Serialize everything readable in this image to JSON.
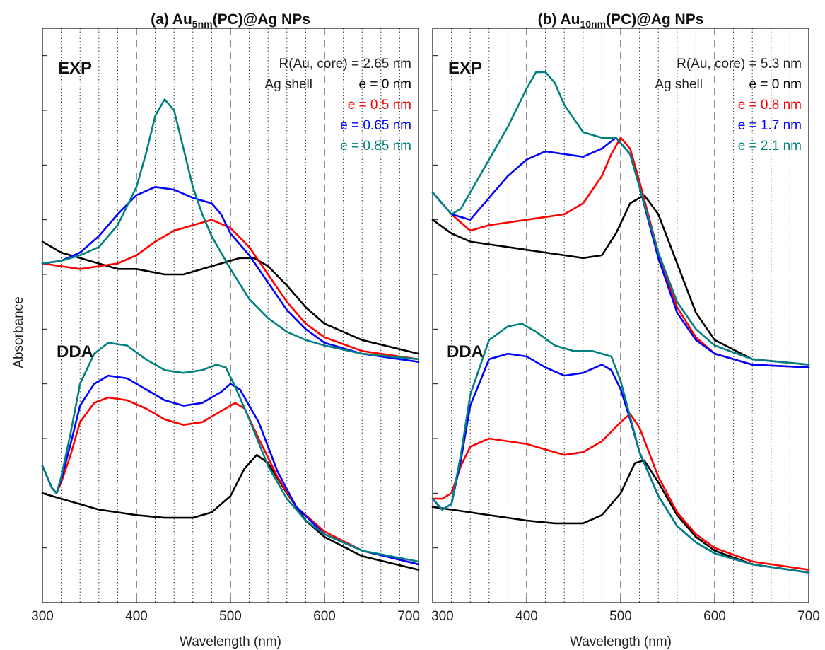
{
  "figure": {
    "ylabel": "Absorbance"
  },
  "chart_data": [
    {
      "type": "line",
      "title": "(a) Au5nm(PC)@Ag NPs",
      "title_parts": {
        "prefix": "(a) Au",
        "sub": "5nm",
        "suffix": "(PC)@Ag NPs"
      },
      "xlabel": "Wavelength (nm)",
      "ylabel": "Absorbance",
      "xlim": [
        300,
        700
      ],
      "xticks": [
        "300",
        "400",
        "500",
        "600",
        "700"
      ],
      "dashed_gridlines_x": [
        400,
        500,
        600
      ],
      "dotted_gridlines_x": [
        320,
        340,
        360,
        380,
        420,
        440,
        460,
        480,
        520,
        540,
        560,
        580,
        620,
        640,
        660,
        680
      ],
      "ylim": [
        0,
        10.5
      ],
      "y_minor_ticks": [
        1,
        2,
        3,
        4,
        5,
        6,
        7,
        8,
        9,
        10
      ],
      "panel_labels": {
        "exp": "EXP",
        "dda": "DDA"
      },
      "legend": {
        "header1": "R(Au, core) = 2.65 nm",
        "header2": "Ag shell",
        "entries": [
          {
            "label": "e = 0 nm",
            "color": "#000000"
          },
          {
            "label": "e = 0.5 nm",
            "color": "#ff0000"
          },
          {
            "label": "e = 0.65 nm",
            "color": "#0000ff"
          },
          {
            "label": "e = 0.85 nm",
            "color": "#008080"
          }
        ]
      },
      "series_exp": [
        {
          "color": "#000000",
          "x": [
            300,
            320,
            340,
            360,
            380,
            400,
            430,
            450,
            470,
            490,
            510,
            525,
            540,
            560,
            580,
            600,
            640,
            700
          ],
          "y": [
            6.6,
            6.4,
            6.3,
            6.2,
            6.1,
            6.1,
            6.0,
            6.0,
            6.1,
            6.2,
            6.3,
            6.3,
            6.15,
            5.8,
            5.4,
            5.1,
            4.8,
            4.55
          ]
        },
        {
          "color": "#ff0000",
          "x": [
            300,
            320,
            340,
            360,
            380,
            400,
            420,
            440,
            460,
            480,
            500,
            520,
            540,
            560,
            580,
            600,
            640,
            700
          ],
          "y": [
            6.2,
            6.15,
            6.1,
            6.15,
            6.2,
            6.35,
            6.6,
            6.8,
            6.9,
            7.0,
            6.85,
            6.5,
            6.0,
            5.5,
            5.1,
            4.85,
            4.6,
            4.45
          ]
        },
        {
          "color": "#0000ff",
          "x": [
            300,
            320,
            340,
            360,
            380,
            400,
            420,
            440,
            460,
            480,
            490,
            500,
            520,
            540,
            560,
            580,
            600,
            640,
            700
          ],
          "y": [
            6.2,
            6.25,
            6.4,
            6.7,
            7.1,
            7.45,
            7.6,
            7.55,
            7.4,
            7.3,
            7.1,
            6.75,
            6.35,
            5.85,
            5.35,
            5.0,
            4.75,
            4.55,
            4.4
          ]
        },
        {
          "color": "#008080",
          "x": [
            300,
            320,
            340,
            360,
            380,
            400,
            410,
            420,
            430,
            440,
            450,
            460,
            470,
            480,
            500,
            520,
            540,
            560,
            580,
            600,
            640,
            700
          ],
          "y": [
            6.2,
            6.25,
            6.35,
            6.5,
            6.9,
            7.6,
            8.2,
            8.9,
            9.2,
            9.0,
            8.3,
            7.6,
            7.1,
            6.7,
            6.1,
            5.55,
            5.2,
            4.95,
            4.8,
            4.7,
            4.55,
            4.45
          ]
        }
      ],
      "series_dda": [
        {
          "color": "#000000",
          "x": [
            300,
            320,
            340,
            360,
            380,
            400,
            430,
            460,
            480,
            500,
            515,
            528,
            540,
            560,
            580,
            600,
            640,
            700
          ],
          "y": [
            2.0,
            1.9,
            1.8,
            1.7,
            1.65,
            1.6,
            1.55,
            1.55,
            1.65,
            1.95,
            2.45,
            2.7,
            2.55,
            2.0,
            1.5,
            1.2,
            0.85,
            0.6
          ]
        },
        {
          "color": "#ff0000",
          "x": [
            300,
            310,
            315,
            320,
            330,
            340,
            355,
            370,
            390,
            410,
            430,
            450,
            470,
            490,
            505,
            515,
            530,
            550,
            570,
            600,
            640,
            700
          ],
          "y": [
            2.5,
            2.1,
            2.0,
            2.2,
            2.7,
            3.3,
            3.65,
            3.75,
            3.7,
            3.55,
            3.35,
            3.25,
            3.3,
            3.5,
            3.65,
            3.55,
            3.0,
            2.3,
            1.75,
            1.3,
            0.95,
            0.7
          ]
        },
        {
          "color": "#0000ff",
          "x": [
            300,
            310,
            315,
            320,
            330,
            340,
            355,
            370,
            390,
            410,
            430,
            450,
            470,
            490,
            500,
            510,
            530,
            550,
            570,
            600,
            640,
            700
          ],
          "y": [
            2.5,
            2.1,
            2.0,
            2.25,
            2.9,
            3.6,
            4.0,
            4.15,
            4.1,
            3.9,
            3.7,
            3.6,
            3.65,
            3.85,
            4.0,
            3.9,
            3.3,
            2.4,
            1.75,
            1.25,
            0.95,
            0.7
          ]
        },
        {
          "color": "#008080",
          "x": [
            300,
            310,
            315,
            320,
            330,
            340,
            355,
            370,
            390,
            410,
            430,
            450,
            470,
            485,
            495,
            505,
            520,
            540,
            560,
            580,
            600,
            640,
            700
          ],
          "y": [
            2.5,
            2.1,
            2.0,
            2.3,
            3.1,
            4.0,
            4.55,
            4.75,
            4.7,
            4.45,
            4.25,
            4.2,
            4.25,
            4.35,
            4.3,
            3.95,
            3.35,
            2.5,
            1.9,
            1.5,
            1.25,
            0.95,
            0.75
          ]
        }
      ]
    },
    {
      "type": "line",
      "title": "(b) Au10nm(PC)@Ag NPs",
      "title_parts": {
        "prefix": "(b) Au",
        "sub": "10nm",
        "suffix": "(PC)@Ag NPs"
      },
      "xlabel": "Wavelength (nm)",
      "ylabel": "Absorbance",
      "xlim": [
        300,
        700
      ],
      "xticks": [
        "300",
        "400",
        "500",
        "600",
        "700"
      ],
      "dashed_gridlines_x": [
        400,
        500,
        600
      ],
      "dotted_gridlines_x": [
        320,
        340,
        360,
        380,
        420,
        440,
        460,
        480,
        520,
        540,
        560,
        580,
        620,
        640,
        660,
        680
      ],
      "ylim": [
        0,
        10.5
      ],
      "y_minor_ticks": [
        1,
        2,
        3,
        4,
        5,
        6,
        7,
        8,
        9,
        10
      ],
      "panel_labels": {
        "exp": "EXP",
        "dda": "DDA"
      },
      "legend": {
        "header1": "R(Au, core) = 5.3 nm",
        "header2": "Ag shell",
        "entries": [
          {
            "label": "e = 0 nm",
            "color": "#000000"
          },
          {
            "label": "e = 0.8 nm",
            "color": "#ff0000"
          },
          {
            "label": "e = 1.7 nm",
            "color": "#0000ff"
          },
          {
            "label": "e = 2.1 nm",
            "color": "#008080"
          }
        ]
      },
      "series_exp": [
        {
          "color": "#000000",
          "x": [
            300,
            320,
            340,
            360,
            380,
            400,
            420,
            440,
            460,
            480,
            495,
            510,
            525,
            540,
            560,
            580,
            600,
            640,
            700
          ],
          "y": [
            7.0,
            6.75,
            6.6,
            6.55,
            6.5,
            6.45,
            6.4,
            6.35,
            6.3,
            6.35,
            6.75,
            7.3,
            7.45,
            7.1,
            6.2,
            5.3,
            4.8,
            4.45,
            4.35
          ]
        },
        {
          "color": "#ff0000",
          "x": [
            300,
            320,
            340,
            360,
            380,
            400,
            420,
            440,
            460,
            480,
            490,
            500,
            510,
            520,
            540,
            560,
            580,
            600,
            640,
            700
          ],
          "y": [
            7.5,
            7.1,
            6.8,
            6.9,
            6.95,
            7.0,
            7.05,
            7.1,
            7.3,
            7.8,
            8.2,
            8.5,
            8.3,
            7.7,
            6.4,
            5.4,
            4.85,
            4.55,
            4.35,
            4.3
          ]
        },
        {
          "color": "#0000ff",
          "x": [
            300,
            320,
            340,
            360,
            380,
            400,
            420,
            440,
            460,
            480,
            495,
            510,
            520,
            540,
            560,
            580,
            600,
            640,
            700
          ],
          "y": [
            7.5,
            7.1,
            7.0,
            7.4,
            7.8,
            8.1,
            8.25,
            8.2,
            8.15,
            8.3,
            8.5,
            8.2,
            7.6,
            6.3,
            5.3,
            4.8,
            4.55,
            4.35,
            4.3
          ]
        },
        {
          "color": "#008080",
          "x": [
            300,
            310,
            320,
            330,
            340,
            360,
            380,
            400,
            410,
            420,
            430,
            440,
            460,
            480,
            495,
            510,
            520,
            540,
            560,
            580,
            600,
            640,
            700
          ],
          "y": [
            7.5,
            7.3,
            7.1,
            7.2,
            7.5,
            8.1,
            8.7,
            9.4,
            9.7,
            9.7,
            9.5,
            9.1,
            8.6,
            8.5,
            8.5,
            8.2,
            7.6,
            6.4,
            5.5,
            5.0,
            4.7,
            4.45,
            4.35
          ]
        }
      ],
      "series_dda": [
        {
          "color": "#000000",
          "x": [
            300,
            320,
            340,
            360,
            380,
            400,
            430,
            460,
            480,
            500,
            515,
            525,
            540,
            560,
            580,
            600,
            640,
            700
          ],
          "y": [
            1.75,
            1.7,
            1.65,
            1.6,
            1.55,
            1.5,
            1.45,
            1.45,
            1.6,
            2.0,
            2.55,
            2.6,
            2.2,
            1.6,
            1.2,
            0.95,
            0.7,
            0.55
          ]
        },
        {
          "color": "#ff0000",
          "x": [
            300,
            310,
            320,
            330,
            340,
            360,
            380,
            400,
            420,
            440,
            460,
            480,
            500,
            510,
            520,
            540,
            560,
            580,
            600,
            640,
            700
          ],
          "y": [
            1.9,
            1.9,
            2.0,
            2.5,
            2.85,
            3.0,
            2.95,
            2.9,
            2.8,
            2.7,
            2.75,
            2.95,
            3.3,
            3.45,
            3.2,
            2.3,
            1.65,
            1.25,
            1.0,
            0.75,
            0.6
          ]
        },
        {
          "color": "#0000ff",
          "x": [
            300,
            310,
            320,
            330,
            340,
            360,
            380,
            400,
            420,
            440,
            460,
            480,
            490,
            500,
            510,
            520,
            540,
            560,
            580,
            600,
            640,
            700
          ],
          "y": [
            1.9,
            1.7,
            1.8,
            2.6,
            3.6,
            4.45,
            4.55,
            4.5,
            4.3,
            4.15,
            4.2,
            4.35,
            4.25,
            3.9,
            3.35,
            2.75,
            1.95,
            1.4,
            1.1,
            0.9,
            0.7,
            0.55
          ]
        },
        {
          "color": "#008080",
          "x": [
            300,
            310,
            320,
            330,
            340,
            360,
            380,
            395,
            410,
            430,
            450,
            470,
            490,
            500,
            510,
            520,
            540,
            560,
            580,
            600,
            640,
            700
          ],
          "y": [
            1.9,
            1.7,
            1.8,
            2.7,
            3.8,
            4.8,
            5.05,
            5.1,
            4.95,
            4.7,
            4.6,
            4.6,
            4.5,
            4.05,
            3.4,
            2.75,
            1.95,
            1.4,
            1.1,
            0.9,
            0.7,
            0.55
          ]
        }
      ]
    }
  ]
}
